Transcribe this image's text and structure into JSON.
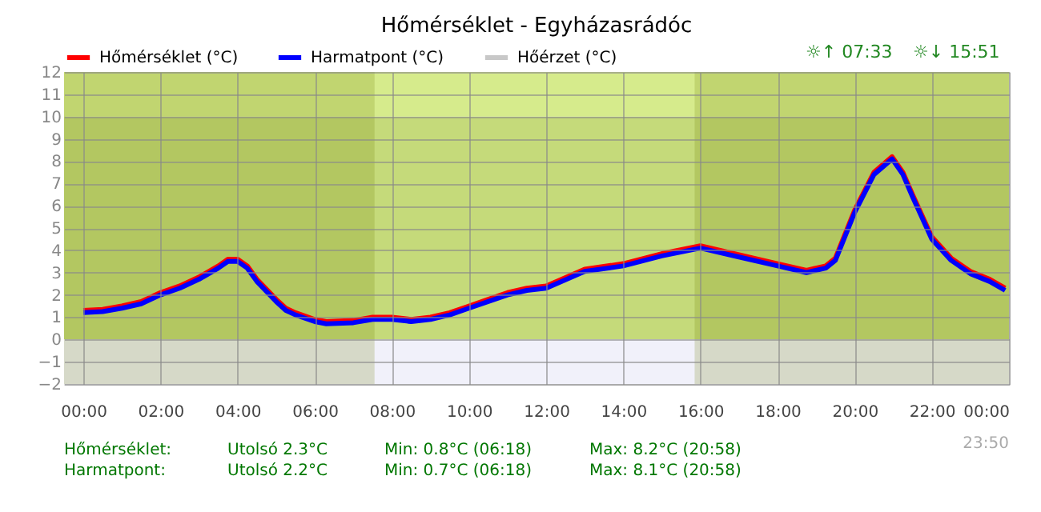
{
  "chart_data": {
    "type": "line",
    "title": "Hőmérséklet - Egyházasrádóc",
    "x": [
      0,
      0.5,
      1,
      1.5,
      2,
      2.5,
      3,
      3.5,
      3.75,
      4,
      4.25,
      4.5,
      5,
      5.25,
      5.5,
      6,
      6.3,
      7,
      7.5,
      8,
      8.5,
      9,
      9.5,
      10,
      10.5,
      11,
      11.5,
      12,
      13,
      14,
      15,
      16,
      17,
      18,
      18.75,
      19.25,
      19.5,
      20,
      20.5,
      20.97,
      21.25,
      21.5,
      22,
      22.5,
      23,
      23.5,
      23.9
    ],
    "series": [
      {
        "name": "Hőmérséklet (°C)",
        "color": "#ff0000",
        "values": [
          1.3,
          1.35,
          1.5,
          1.7,
          2.1,
          2.4,
          2.8,
          3.3,
          3.6,
          3.6,
          3.3,
          2.7,
          1.8,
          1.4,
          1.2,
          0.9,
          0.8,
          0.85,
          1.0,
          1.0,
          0.9,
          1.0,
          1.2,
          1.5,
          1.8,
          2.1,
          2.3,
          2.4,
          3.15,
          3.4,
          3.85,
          4.2,
          3.8,
          3.4,
          3.1,
          3.3,
          3.65,
          5.8,
          7.5,
          8.2,
          7.5,
          6.5,
          4.6,
          3.65,
          3.05,
          2.7,
          2.3
        ]
      },
      {
        "name": "Harmatpont (°C)",
        "color": "#0000ff",
        "values": [
          1.2,
          1.25,
          1.4,
          1.6,
          2.0,
          2.3,
          2.7,
          3.2,
          3.5,
          3.5,
          3.2,
          2.6,
          1.7,
          1.3,
          1.1,
          0.8,
          0.7,
          0.75,
          0.9,
          0.9,
          0.8,
          0.9,
          1.1,
          1.4,
          1.7,
          2.0,
          2.2,
          2.3,
          3.05,
          3.3,
          3.75,
          4.1,
          3.7,
          3.3,
          3.0,
          3.2,
          3.55,
          5.7,
          7.4,
          8.1,
          7.4,
          6.4,
          4.5,
          3.55,
          2.95,
          2.6,
          2.2
        ]
      },
      {
        "name": "Hőérzet (°C)",
        "color": "#c8c8c8",
        "values": [
          null,
          null,
          null,
          null,
          null,
          null,
          null,
          null,
          null,
          null,
          null,
          null,
          null,
          null,
          null,
          null,
          null,
          null,
          null,
          null,
          null,
          null,
          null,
          null,
          null,
          null,
          null,
          null,
          null,
          null,
          null,
          null,
          null,
          null,
          null,
          null,
          null,
          null,
          null,
          null,
          null,
          null,
          null,
          null,
          null,
          null,
          null
        ]
      }
    ],
    "xlim": [
      -0.5,
      24
    ],
    "xticks": [
      {
        "value": 0,
        "label": "00:00"
      },
      {
        "value": 2,
        "label": "02:00"
      },
      {
        "value": 4,
        "label": "04:00"
      },
      {
        "value": 6,
        "label": "06:00"
      },
      {
        "value": 8,
        "label": "08:00"
      },
      {
        "value": 10,
        "label": "10:00"
      },
      {
        "value": 12,
        "label": "12:00"
      },
      {
        "value": 14,
        "label": "14:00"
      },
      {
        "value": 16,
        "label": "16:00"
      },
      {
        "value": 18,
        "label": "18:00"
      },
      {
        "value": 20,
        "label": "20:00"
      },
      {
        "value": 22,
        "label": "22:00"
      },
      {
        "value": 24,
        "label": "00:00"
      }
    ],
    "ylim": [
      -2,
      12
    ],
    "yticks": [
      -2,
      -1,
      0,
      1,
      2,
      3,
      4,
      5,
      6,
      7,
      8,
      9,
      10,
      11,
      12
    ],
    "bands": [
      {
        "axis": "y",
        "from": 10,
        "to": 12,
        "color": "#d6eb8c"
      },
      {
        "axis": "y",
        "from": 0,
        "to": 10,
        "color": "#c5da7a"
      },
      {
        "axis": "y",
        "from": -2,
        "to": 0,
        "color": "#f1f1fa"
      },
      {
        "axis": "x",
        "from": -0.5,
        "to": 7.55,
        "color": "#6f7f00"
      },
      {
        "axis": "x",
        "from": 15.85,
        "to": 24,
        "color": "#6f7f00"
      }
    ],
    "annotations": [
      "☼↑ 07:33",
      "☼↓ 15:51",
      "23:50",
      "Hőmérséklet:",
      "Utolsó 2.3°C",
      "Min: 0.8°C (06:18)",
      "Max: 8.2°C (20:58)",
      "Harmatpont:",
      "Utolsó 2.2°C",
      "Min: 0.7°C (06:18)",
      "Max: 8.1°C (20:58)"
    ],
    "legend": "top left",
    "grid": true,
    "marker": "none",
    "line_style": "solid"
  }
}
